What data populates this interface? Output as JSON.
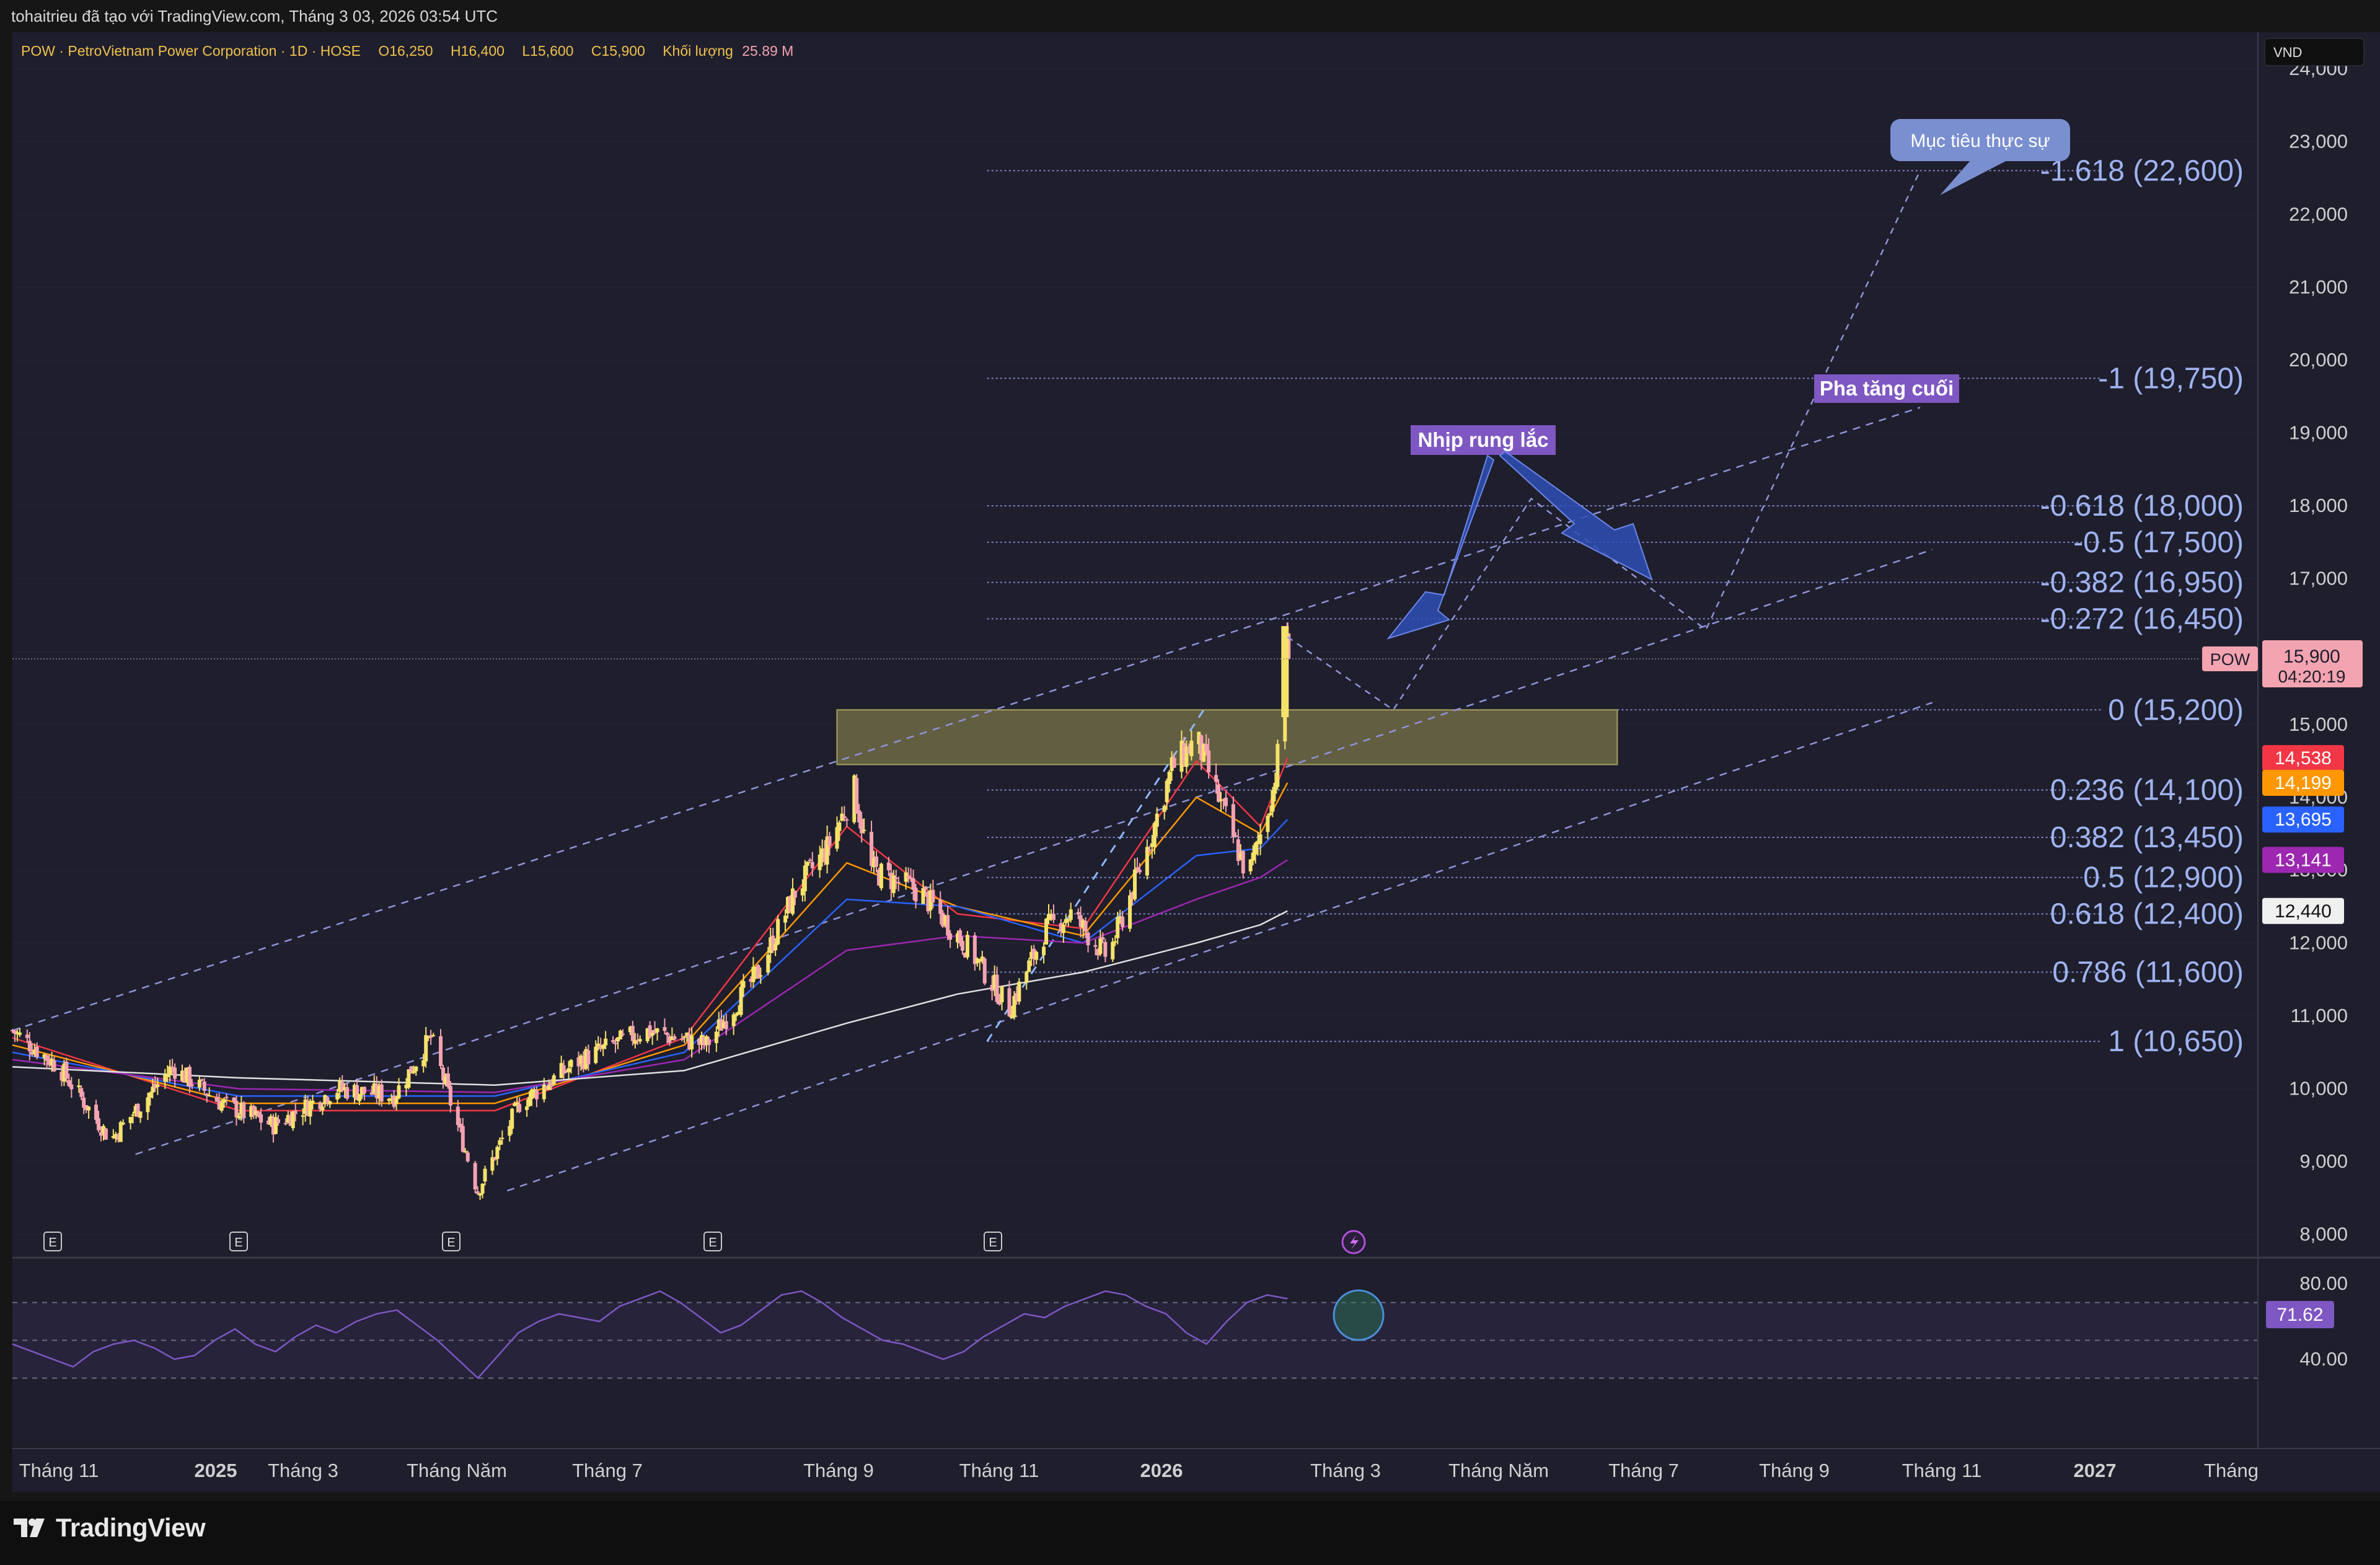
{
  "header": {
    "attribution": "tohaitrieu đã tạo với TradingView.com, Tháng 3 03, 2026 03:54 UTC"
  },
  "legend": {
    "symbol_desc": "POW · PetroVietnam Power Corporation · 1D · HOSE",
    "open": "O16,250",
    "high": "H16,400",
    "low": "L15,600",
    "close": "C15,900",
    "volume_label": "Khối lượng",
    "volume_value": "25.89 M"
  },
  "currency": "VND",
  "price_axis": {
    "ticks": [
      "24,000",
      "23,000",
      "22,000",
      "21,000",
      "20,000",
      "19,000",
      "18,000",
      "17,000",
      "16,000",
      "15,000",
      "14,000",
      "13,000",
      "12,000",
      "11,000",
      "10,000",
      "9,000",
      "8,000"
    ],
    "current_symbol": "POW",
    "current_price": "15,900",
    "countdown": "04:20:19",
    "ma_tags": [
      {
        "value": "14,538",
        "color": "#f23645"
      },
      {
        "value": "14,199",
        "color": "#ff9800"
      },
      {
        "value": "13,695",
        "color": "#2962ff"
      },
      {
        "value": "13,141",
        "color": "#9c27b0"
      },
      {
        "value": "12,440",
        "color": "#f0f0f0"
      }
    ]
  },
  "time_axis": {
    "labels": [
      {
        "text": "Tháng 11",
        "bold": false
      },
      {
        "text": "2025",
        "bold": true
      },
      {
        "text": "Tháng 3",
        "bold": false
      },
      {
        "text": "Tháng Năm",
        "bold": false
      },
      {
        "text": "Tháng 7",
        "bold": false
      },
      {
        "text": "Tháng 9",
        "bold": false
      },
      {
        "text": "Tháng 11",
        "bold": false
      },
      {
        "text": "2026",
        "bold": true
      },
      {
        "text": "Tháng 3",
        "bold": false
      },
      {
        "text": "Tháng Năm",
        "bold": false
      },
      {
        "text": "Tháng 7",
        "bold": false
      },
      {
        "text": "Tháng 9",
        "bold": false
      },
      {
        "text": "Tháng 11",
        "bold": false
      },
      {
        "text": "2027",
        "bold": true
      },
      {
        "text": "Tháng",
        "bold": false
      }
    ]
  },
  "fib_levels": [
    {
      "label": "-1.618 (22,600)",
      "price": 22600
    },
    {
      "label": "-1 (19,750)",
      "price": 19750
    },
    {
      "label": "-0.618 (18,000)",
      "price": 18000
    },
    {
      "label": "-0.5 (17,500)",
      "price": 17500
    },
    {
      "label": "-0.382 (16,950)",
      "price": 16950
    },
    {
      "label": "-0.272 (16,450)",
      "price": 16450
    },
    {
      "label": "0 (15,200)",
      "price": 15200
    },
    {
      "label": "0.236 (14,100)",
      "price": 14100
    },
    {
      "label": "0.382 (13,450)",
      "price": 13450
    },
    {
      "label": "0.5 (12,900)",
      "price": 12900
    },
    {
      "label": "0.618 (12,400)",
      "price": 12400
    },
    {
      "label": "0.786 (11,600)",
      "price": 11600
    },
    {
      "label": "1 (10,650)",
      "price": 10650
    }
  ],
  "annotations": {
    "target": "Mục tiêu thực sự",
    "final_phase": "Pha tăng cuối",
    "shakeout": "Nhịp rung lắc"
  },
  "earnings_marker": "E",
  "rsi": {
    "ticks": [
      "80.00",
      "40.00"
    ],
    "value": "71.62"
  },
  "brand": "TradingView",
  "colors": {
    "background": "#1e1e2d",
    "bull": "#f5e26b",
    "bear": "#f4a3b0",
    "fib": "#7f88c8",
    "fib_label": "#9fb3f0",
    "zone": "#7a7448",
    "rsi_line": "#7e57c2",
    "annotation_purple": "#7e57c2",
    "annotation_blue": "#7a8fd0"
  },
  "chart_data": {
    "type": "candlestick",
    "ylim": [
      7700,
      24500
    ],
    "x_range": [
      "2024-10-01",
      "2027-04-01"
    ],
    "last_candle": {
      "date": "2026-03-03",
      "open": 16250,
      "high": 16400,
      "low": 15600,
      "close": 15900
    },
    "price_path": [
      {
        "date": "2024-10-01",
        "close": 10800
      },
      {
        "date": "2024-10-20",
        "close": 10300
      },
      {
        "date": "2024-11-10",
        "close": 9300
      },
      {
        "date": "2024-12-05",
        "close": 10300
      },
      {
        "date": "2024-12-25",
        "close": 9800
      },
      {
        "date": "2025-01-15",
        "close": 9500
      },
      {
        "date": "2025-02-10",
        "close": 10000
      },
      {
        "date": "2025-03-05",
        "close": 9900
      },
      {
        "date": "2025-03-20",
        "close": 10700
      },
      {
        "date": "2025-04-08",
        "close": 8600
      },
      {
        "date": "2025-04-25",
        "close": 9800
      },
      {
        "date": "2025-05-20",
        "close": 10400
      },
      {
        "date": "2025-06-15",
        "close": 10800
      },
      {
        "date": "2025-07-10",
        "close": 10600
      },
      {
        "date": "2025-07-31",
        "close": 11600
      },
      {
        "date": "2025-08-15",
        "close": 12700
      },
      {
        "date": "2025-08-28",
        "close": 13300
      },
      {
        "date": "2025-09-08",
        "close": 14100
      },
      {
        "date": "2025-09-15",
        "close": 13000
      },
      {
        "date": "2025-10-05",
        "close": 12700
      },
      {
        "date": "2025-10-25",
        "close": 11900
      },
      {
        "date": "2025-11-10",
        "close": 11100
      },
      {
        "date": "2025-11-25",
        "close": 12200
      },
      {
        "date": "2025-12-05",
        "close": 12400
      },
      {
        "date": "2025-12-20",
        "close": 11800
      },
      {
        "date": "2026-01-05",
        "close": 13300
      },
      {
        "date": "2026-01-15",
        "close": 14400
      },
      {
        "date": "2026-01-25",
        "close": 14800
      },
      {
        "date": "2026-02-05",
        "close": 13800
      },
      {
        "date": "2026-02-15",
        "close": 12900
      },
      {
        "date": "2026-02-25",
        "close": 14100
      },
      {
        "date": "2026-03-01",
        "close": 15000
      },
      {
        "date": "2026-03-03",
        "close": 15900
      }
    ],
    "moving_averages": [
      {
        "color": "#f23645",
        "last": 14538,
        "points": [
          [
            "2024-10-01",
            10700
          ],
          [
            "2025-01-01",
            9700
          ],
          [
            "2025-04-15",
            9700
          ],
          [
            "2025-07-01",
            10700
          ],
          [
            "2025-09-05",
            13600
          ],
          [
            "2025-10-20",
            12400
          ],
          [
            "2025-12-10",
            12200
          ],
          [
            "2026-01-25",
            14500
          ],
          [
            "2026-02-20",
            13600
          ],
          [
            "2026-03-03",
            14538
          ]
        ]
      },
      {
        "color": "#ff9800",
        "last": 14199,
        "points": [
          [
            "2024-10-01",
            10600
          ],
          [
            "2025-01-01",
            9800
          ],
          [
            "2025-04-15",
            9800
          ],
          [
            "2025-07-01",
            10600
          ],
          [
            "2025-09-05",
            13100
          ],
          [
            "2025-10-20",
            12500
          ],
          [
            "2025-12-10",
            12100
          ],
          [
            "2026-01-25",
            14000
          ],
          [
            "2026-02-20",
            13500
          ],
          [
            "2026-03-03",
            14199
          ]
        ]
      },
      {
        "color": "#2962ff",
        "last": 13695,
        "points": [
          [
            "2024-10-01",
            10500
          ],
          [
            "2025-01-01",
            9900
          ],
          [
            "2025-04-15",
            9900
          ],
          [
            "2025-07-01",
            10500
          ],
          [
            "2025-09-05",
            12600
          ],
          [
            "2025-10-20",
            12500
          ],
          [
            "2025-12-10",
            12000
          ],
          [
            "2026-01-25",
            13200
          ],
          [
            "2026-02-20",
            13300
          ],
          [
            "2026-03-03",
            13695
          ]
        ]
      },
      {
        "color": "#9c27b0",
        "last": 13141,
        "points": [
          [
            "2024-10-01",
            10400
          ],
          [
            "2025-01-01",
            10000
          ],
          [
            "2025-04-15",
            9950
          ],
          [
            "2025-07-01",
            10400
          ],
          [
            "2025-09-05",
            11900
          ],
          [
            "2025-10-20",
            12100
          ],
          [
            "2025-12-10",
            12000
          ],
          [
            "2026-01-25",
            12600
          ],
          [
            "2026-02-20",
            12900
          ],
          [
            "2026-03-03",
            13141
          ]
        ]
      },
      {
        "color": "#e0e0e0",
        "last": 12440,
        "points": [
          [
            "2024-10-01",
            10300
          ],
          [
            "2025-01-01",
            10150
          ],
          [
            "2025-04-15",
            10050
          ],
          [
            "2025-07-01",
            10250
          ],
          [
            "2025-09-05",
            10900
          ],
          [
            "2025-10-20",
            11300
          ],
          [
            "2025-12-10",
            11600
          ],
          [
            "2026-01-25",
            12000
          ],
          [
            "2026-02-20",
            12250
          ],
          [
            "2026-03-03",
            12440
          ]
        ]
      }
    ],
    "resistance_zone": {
      "from_date": "2025-09-01",
      "to_date": "2026-07-15",
      "low": 14450,
      "high": 15200
    },
    "channel_lines": [
      {
        "from": [
          "2024-10-01",
          10800
        ],
        "to": [
          "2026-11-15",
          19350
        ],
        "style": "dashed"
      },
      {
        "from": [
          "2024-11-20",
          9100
        ],
        "to": [
          "2026-11-20",
          17400
        ],
        "style": "dashed"
      },
      {
        "from": [
          "2025-04-20",
          8600
        ],
        "to": [
          "2026-11-20",
          15300
        ],
        "style": "dashed"
      }
    ],
    "projection_path": [
      [
        "2026-03-03",
        16200
      ],
      [
        "2026-04-15",
        15200
      ],
      [
        "2026-06-10",
        18100
      ],
      [
        "2026-08-20",
        16300
      ],
      [
        "2026-11-15",
        22600
      ]
    ],
    "rsi_path": [
      48,
      44,
      40,
      36,
      44,
      48,
      50,
      46,
      40,
      42,
      50,
      56,
      48,
      44,
      52,
      58,
      54,
      60,
      64,
      66,
      58,
      50,
      40,
      30,
      42,
      54,
      60,
      64,
      62,
      60,
      68,
      72,
      76,
      70,
      62,
      54,
      58,
      66,
      74,
      76,
      70,
      62,
      56,
      50,
      48,
      44,
      40,
      44,
      52,
      58,
      64,
      62,
      68,
      72,
      76,
      74,
      68,
      64,
      54,
      48,
      60,
      70,
      74,
      72
    ]
  }
}
